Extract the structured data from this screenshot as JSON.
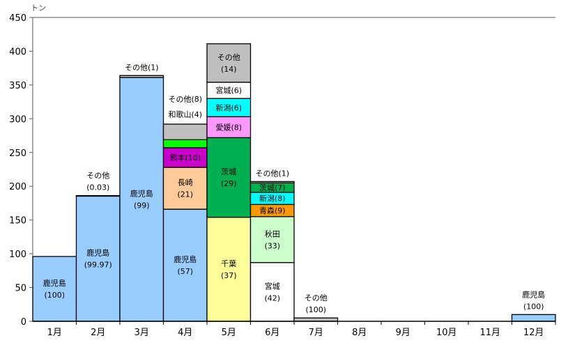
{
  "chart_data": {
    "type": "bar",
    "stacked": true,
    "title": "",
    "ylabel": "トン",
    "xlabel": "",
    "ylim": [
      0,
      450
    ],
    "yticks": [
      0,
      50,
      100,
      150,
      200,
      250,
      300,
      350,
      400,
      450
    ],
    "grid": false,
    "categories": [
      "1月",
      "2月",
      "3月",
      "4月",
      "5月",
      "6月",
      "7月",
      "8月",
      "9月",
      "10月",
      "11月",
      "12月"
    ],
    "bars": [
      {
        "month": "1月",
        "segments": [
          {
            "name": "鹿児島",
            "value": 96,
            "color": "#99CCFF",
            "label": [
              "鹿児島",
              "(100)"
            ],
            "pos": "inside"
          }
        ]
      },
      {
        "month": "2月",
        "segments": [
          {
            "name": "鹿児島",
            "value": 186,
            "color": "#99CCFF",
            "label": [
              "鹿児島",
              "(99.97)"
            ],
            "pos": "inside"
          },
          {
            "name": "その他",
            "value": 0.1,
            "color": "#BFBFBF",
            "label": [
              "その他",
              "(0.03)"
            ],
            "pos": "above"
          }
        ]
      },
      {
        "month": "3月",
        "segments": [
          {
            "name": "鹿児島",
            "value": 361,
            "color": "#99CCFF",
            "label": [
              "鹿児島",
              "(99)"
            ],
            "pos": "inside"
          },
          {
            "name": "その他",
            "value": 3,
            "color": "#BFBFBF",
            "label": [
              "その他(1)"
            ],
            "pos": "above"
          }
        ]
      },
      {
        "month": "4月",
        "segments": [
          {
            "name": "鹿児島",
            "value": 166,
            "color": "#99CCFF",
            "label": [
              "鹿児島",
              "(57)"
            ],
            "pos": "inside"
          },
          {
            "name": "長崎",
            "value": 62,
            "color": "#FFCC99",
            "label": [
              "長崎",
              "(21)"
            ],
            "pos": "inside"
          },
          {
            "name": "熊本",
            "value": 29,
            "color": "#CC00CC",
            "label": [
              "熊本(10)"
            ],
            "pos": "inside"
          },
          {
            "name": "和歌山",
            "value": 12,
            "color": "#00FF00",
            "label": [
              "和歌山(4)"
            ],
            "pos": "above2"
          },
          {
            "name": "その他",
            "value": 23,
            "color": "#BFBFBF",
            "label": [
              "その他(8)"
            ],
            "pos": "above1"
          }
        ]
      },
      {
        "month": "5月",
        "segments": [
          {
            "name": "千葉",
            "value": 154,
            "color": "#FFFF99",
            "label": [
              "千葉",
              "(37)"
            ],
            "pos": "inside"
          },
          {
            "name": "茨城",
            "value": 118,
            "color": "#00B050",
            "label": [
              "茨城",
              "(29)"
            ],
            "pos": "inside"
          },
          {
            "name": "愛媛",
            "value": 31,
            "color": "#FF99FF",
            "label": [
              "愛媛(8)"
            ],
            "pos": "inside"
          },
          {
            "name": "新潟",
            "value": 27,
            "color": "#00FFFF",
            "label": [
              "新潟(6)"
            ],
            "pos": "inside"
          },
          {
            "name": "宮城",
            "value": 24,
            "color": "#FFFFFF",
            "label": [
              "宮城(6)"
            ],
            "pos": "inside"
          },
          {
            "name": "その他",
            "value": 57,
            "color": "#BFBFBF",
            "label": [
              "その他",
              "(14)"
            ],
            "pos": "inside"
          }
        ]
      },
      {
        "month": "6月",
        "segments": [
          {
            "name": "宮城",
            "value": 87,
            "color": "#FFFFFF",
            "label": [
              "宮城",
              "(42)"
            ],
            "pos": "inside"
          },
          {
            "name": "秋田",
            "value": 68,
            "color": "#CCFFCC",
            "label": [
              "秋田",
              "(33)"
            ],
            "pos": "inside"
          },
          {
            "name": "青森",
            "value": 18,
            "color": "#FF9900",
            "label": [
              "青森(9)"
            ],
            "pos": "inside"
          },
          {
            "name": "新潟",
            "value": 18,
            "color": "#00FFFF",
            "label": [
              "新潟(8)"
            ],
            "pos": "inside"
          },
          {
            "name": "茨城",
            "value": 14,
            "color": "#00B050",
            "label": [
              "茨城(7)"
            ],
            "pos": "inside"
          },
          {
            "name": "その他",
            "value": 2,
            "color": "#BFBFBF",
            "label": [
              "その他(1)"
            ],
            "pos": "above"
          }
        ]
      },
      {
        "month": "7月",
        "segments": [
          {
            "name": "その他",
            "value": 5,
            "color": "#BFBFBF",
            "label": [
              "その他",
              "(100)"
            ],
            "pos": "above"
          }
        ]
      },
      {
        "month": "8月",
        "segments": []
      },
      {
        "month": "9月",
        "segments": []
      },
      {
        "month": "10月",
        "segments": []
      },
      {
        "month": "11月",
        "segments": []
      },
      {
        "month": "12月",
        "segments": [
          {
            "name": "鹿児島",
            "value": 10,
            "color": "#99CCFF",
            "label": [
              "鹿児島",
              "(100)"
            ],
            "pos": "above"
          }
        ]
      }
    ]
  }
}
